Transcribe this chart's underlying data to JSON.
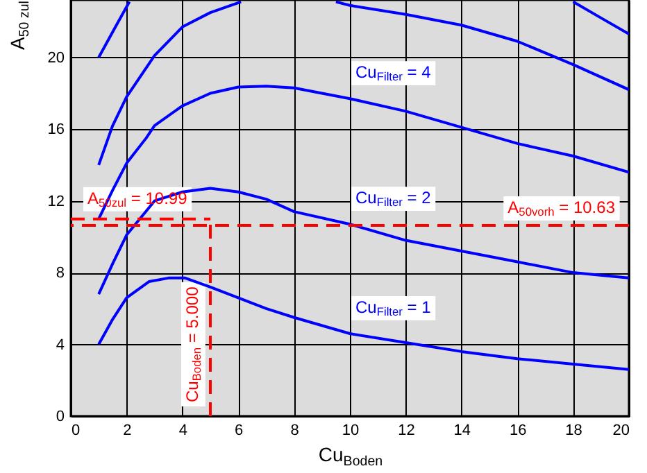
{
  "chart_data": {
    "type": "line",
    "xlabel": "Cu$_{Boden}$",
    "ylabel": "A$_{50 zul}$",
    "xlim": [
      0,
      20
    ],
    "ylim": [
      0,
      23.2
    ],
    "xticks": [
      0,
      2,
      4,
      6,
      8,
      10,
      12,
      14,
      16,
      18,
      20
    ],
    "yticks": [
      0,
      4,
      8,
      12,
      16,
      20
    ],
    "grid": true,
    "line_style": "solid",
    "series": [
      {
        "color": "#0000ff",
        "x": [
          1,
          1.6,
          2.1,
          10,
          18,
          19,
          20
        ],
        "values": [
          20,
          21.7,
          23.1,
          null,
          23.1,
          22.2,
          21.3
        ]
      },
      {
        "color": "#0000ff",
        "x": [
          1,
          1.34,
          1.5,
          2,
          3,
          4,
          5,
          6.1,
          8,
          9.5,
          10,
          12,
          14,
          16,
          18,
          20
        ],
        "values": [
          14,
          15.5,
          16.2,
          17.8,
          20.1,
          21.7,
          22.5,
          23.1,
          null,
          23.1,
          22.9,
          22.4,
          21.8,
          20.9,
          19.6,
          18.2
        ]
      },
      {
        "name": "Cu$_{Filter}$ = 4",
        "color": "#0000ff",
        "x": [
          1,
          1.5,
          2,
          2.7,
          3,
          4,
          5,
          6,
          7,
          8,
          10,
          12,
          14,
          16,
          18,
          20
        ],
        "values": [
          11,
          12.6,
          14.1,
          15.5,
          16.2,
          17.3,
          18,
          18.35,
          18.4,
          18.3,
          17.7,
          17,
          16.1,
          15.2,
          14.5,
          13.6
        ]
      },
      {
        "name": "Cu$_{Filter}$ = 2",
        "color": "#0000ff",
        "x": [
          1,
          1.5,
          2,
          3,
          4,
          5,
          6,
          7,
          8,
          10,
          12,
          14,
          16,
          18,
          20
        ],
        "values": [
          6.8,
          8.5,
          10.1,
          12,
          12.5,
          12.7,
          12.5,
          12.1,
          11.4,
          10.7,
          9.8,
          9.2,
          8.6,
          8,
          7.7
        ]
      },
      {
        "name": "Cu$_{Filter}$ = 1",
        "color": "#0000ff",
        "x": [
          1,
          1.5,
          2,
          2.8,
          3.5,
          4.1,
          5,
          6,
          7,
          8,
          10,
          12,
          14,
          16,
          18,
          20
        ],
        "values": [
          4,
          5.4,
          6.6,
          7.5,
          7.7,
          7.7,
          7.2,
          6.6,
          6,
          5.5,
          4.6,
          4.1,
          3.6,
          3.2,
          2.9,
          2.6
        ]
      },
      {
        "color": "#ff0000",
        "line_style": "dashed",
        "x": [
          0,
          5
        ],
        "values": [
          10.99,
          10.99
        ]
      },
      {
        "color": "#ff0000",
        "line_style": "dashed",
        "x": [
          5,
          5
        ],
        "values": [
          0,
          10.99
        ]
      }
    ],
    "ref_lines": [
      {
        "axis": "y",
        "value": 10.63,
        "label": "A$_{50vorh}$ = 10.63",
        "color": "#ff0000",
        "line_style": "dashed"
      }
    ],
    "annotations": [
      {
        "text": "A$_{50zul}$ = 10.99",
        "x": 0,
        "y": 10.99
      },
      {
        "text": "Cu$_{Boden}$ = 5.000",
        "x": 5,
        "y": 0
      }
    ]
  }
}
